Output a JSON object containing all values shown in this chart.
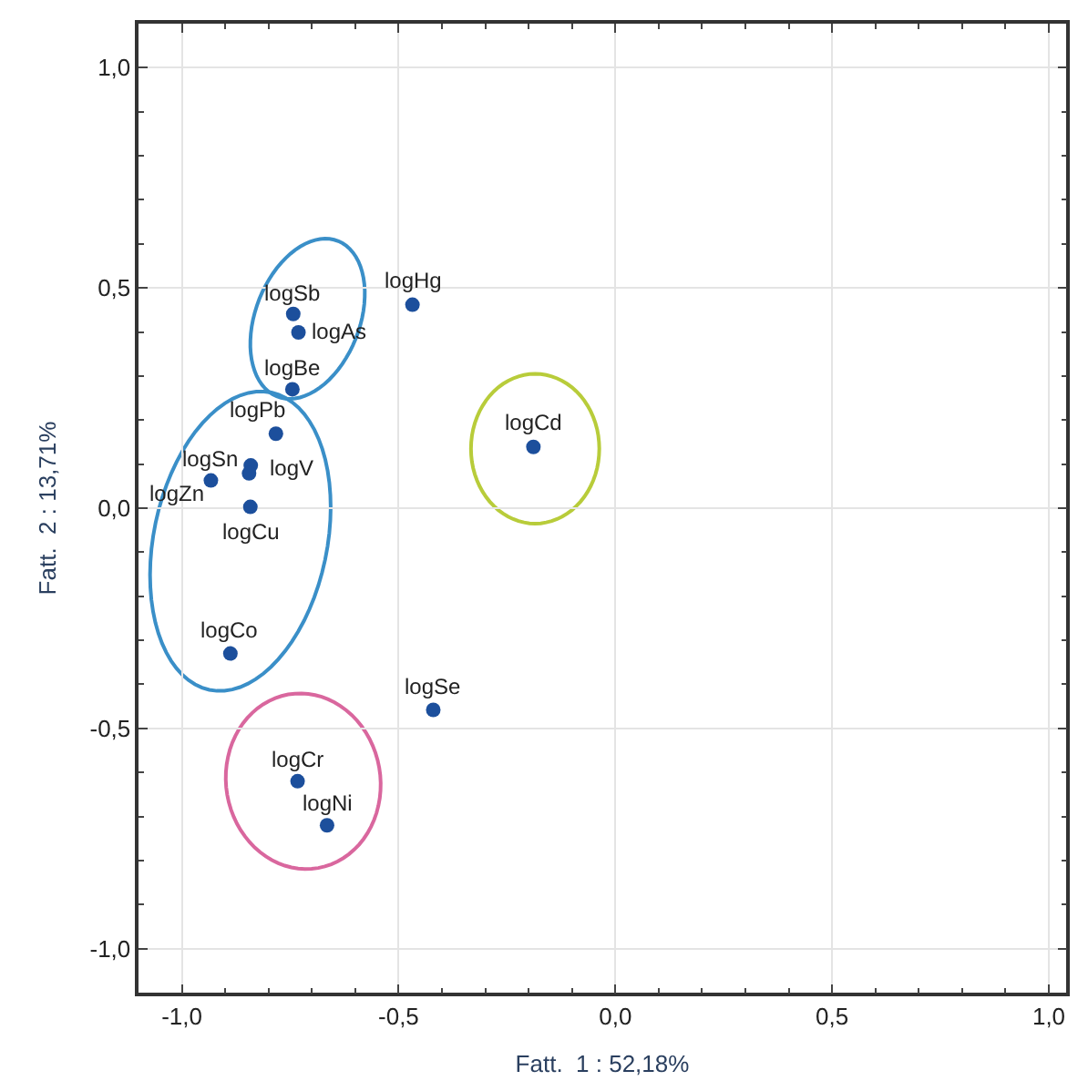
{
  "chart_data": {
    "type": "scatter",
    "xlabel": "Fatt.  1 : 52,18%",
    "ylabel": "Fatt.  2 : 13,71%",
    "x": [
      -0.743,
      -0.731,
      -0.745,
      -0.468,
      -0.783,
      -0.933,
      -0.841,
      -0.845,
      -0.842,
      -0.189,
      -0.888,
      -0.42,
      -0.733,
      -0.665
    ],
    "series": [
      {
        "color": "#1c4f9c",
        "values": [
          0.441,
          0.399,
          0.27,
          0.462,
          0.169,
          0.063,
          0.097,
          0.079,
          0.003,
          0.139,
          -0.33,
          -0.458,
          -0.62,
          -0.72
        ]
      }
    ],
    "annotations": [
      {
        "text": "logSb",
        "x": -0.743,
        "y": 0.441
      },
      {
        "text": "logAs",
        "x": -0.731,
        "y": 0.399
      },
      {
        "text": "logBe",
        "x": -0.745,
        "y": 0.27
      },
      {
        "text": "logHg",
        "x": -0.468,
        "y": 0.462
      },
      {
        "text": "logPb",
        "x": -0.783,
        "y": 0.169
      },
      {
        "text": "logSn",
        "x": -0.933,
        "y": 0.063
      },
      {
        "text": "logV",
        "x": -0.841,
        "y": 0.097
      },
      {
        "text": "logZn",
        "x": -0.845,
        "y": 0.079
      },
      {
        "text": "logCu",
        "x": -0.842,
        "y": 0.003
      },
      {
        "text": "logCd",
        "x": -0.189,
        "y": 0.139
      },
      {
        "text": "logCo",
        "x": -0.888,
        "y": -0.33
      },
      {
        "text": "logSe",
        "x": -0.42,
        "y": -0.458
      },
      {
        "text": "logCr",
        "x": -0.733,
        "y": -0.62
      },
      {
        "text": "logNi",
        "x": -0.665,
        "y": -0.72
      }
    ],
    "xlim": [
      -1.1,
      1.04
    ],
    "ylim": [
      -1.1,
      1.1
    ],
    "xticks": [
      {
        "value": -1,
        "label": "-1,0"
      },
      {
        "value": -0.5,
        "label": "-0,5"
      },
      {
        "value": 0,
        "label": "0,0"
      },
      {
        "value": 0.5,
        "label": "0,5"
      },
      {
        "value": 1,
        "label": "1,0"
      }
    ],
    "yticks": [
      {
        "value": -1,
        "label": "-1,0"
      },
      {
        "value": -0.5,
        "label": "-0,5"
      },
      {
        "value": 0,
        "label": "0,0"
      },
      {
        "value": 0.5,
        "label": "0,5"
      },
      {
        "value": 1,
        "label": "1,0"
      }
    ],
    "grid": true,
    "marker": "circle",
    "legend": false
  }
}
